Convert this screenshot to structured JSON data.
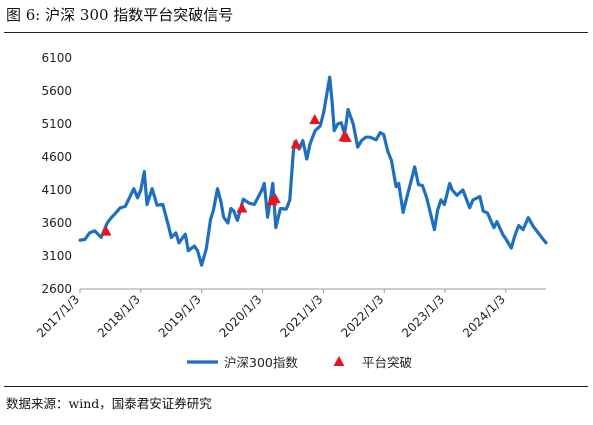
{
  "figure": {
    "title": "图 6:  沪深 300 指数平台突破信号",
    "source": "数据来源：wind，国泰君安证券研究"
  },
  "chart_data": {
    "type": "line",
    "xlabel": "",
    "ylabel": "",
    "ylim": [
      2600,
      6100
    ],
    "yticks": [
      2600,
      3100,
      3600,
      4100,
      4600,
      5100,
      5600,
      6100
    ],
    "xticks": [
      "2017/1/3",
      "2018/1/3",
      "2019/1/3",
      "2020/1/3",
      "2021/1/3",
      "2022/1/3",
      "2023/1/3",
      "2024/1/3"
    ],
    "xlim": [
      "2017/1/3",
      "2024/8/31"
    ],
    "grid": false,
    "legend_position": "bottom",
    "series": [
      {
        "name": "沪深300指数",
        "kind": "line",
        "color": "#1f6fc1",
        "points": [
          [
            "2017/1/3",
            3340
          ],
          [
            "2017/2/1",
            3350
          ],
          [
            "2017/3/1",
            3450
          ],
          [
            "2017/4/1",
            3480
          ],
          [
            "2017/5/10",
            3380
          ],
          [
            "2017/6/15",
            3600
          ],
          [
            "2017/7/10",
            3680
          ],
          [
            "2017/8/1",
            3740
          ],
          [
            "2017/9/1",
            3830
          ],
          [
            "2017/10/1",
            3850
          ],
          [
            "2017/11/1",
            4010
          ],
          [
            "2017/11/22",
            4120
          ],
          [
            "2017/12/15",
            3980
          ],
          [
            "2018/1/3",
            4100
          ],
          [
            "2018/1/24",
            4380
          ],
          [
            "2018/2/9",
            3880
          ],
          [
            "2018/3/12",
            4120
          ],
          [
            "2018/4/10",
            3870
          ],
          [
            "2018/5/15",
            3880
          ],
          [
            "2018/6/19",
            3550
          ],
          [
            "2018/7/5",
            3380
          ],
          [
            "2018/8/1",
            3450
          ],
          [
            "2018/8/20",
            3300
          ],
          [
            "2018/9/27",
            3430
          ],
          [
            "2018/10/15",
            3180
          ],
          [
            "2018/11/20",
            3250
          ],
          [
            "2018/12/10",
            3180
          ],
          [
            "2019/1/3",
            2960
          ],
          [
            "2019/1/31",
            3210
          ],
          [
            "2019/2/25",
            3650
          ],
          [
            "2019/3/15",
            3800
          ],
          [
            "2019/4/8",
            4120
          ],
          [
            "2019/4/30",
            3910
          ],
          [
            "2019/5/15",
            3690
          ],
          [
            "2019/6/10",
            3600
          ],
          [
            "2019/6/28",
            3820
          ],
          [
            "2019/7/15",
            3780
          ],
          [
            "2019/8/6",
            3640
          ],
          [
            "2019/9/10",
            3960
          ],
          [
            "2019/10/15",
            3900
          ],
          [
            "2019/11/15",
            3880
          ],
          [
            "2019/12/31",
            4100
          ],
          [
            "2020/1/14",
            4200
          ],
          [
            "2020/2/3",
            3690
          ],
          [
            "2020/3/5",
            4200
          ],
          [
            "2020/3/23",
            3530
          ],
          [
            "2020/4/20",
            3820
          ],
          [
            "2020/5/25",
            3810
          ],
          [
            "2020/6/15",
            3950
          ],
          [
            "2020/7/6",
            4670
          ],
          [
            "2020/7/15",
            4830
          ],
          [
            "2020/8/10",
            4720
          ],
          [
            "2020/9/1",
            4850
          ],
          [
            "2020/9/25",
            4570
          ],
          [
            "2020/10/15",
            4800
          ],
          [
            "2020/11/15",
            5000
          ],
          [
            "2020/12/15",
            5070
          ],
          [
            "2021/1/4",
            5270
          ],
          [
            "2021/1/20",
            5500
          ],
          [
            "2021/2/10",
            5810
          ],
          [
            "2021/2/25",
            5420
          ],
          [
            "2021/3/9",
            5000
          ],
          [
            "2021/3/30",
            5100
          ],
          [
            "2021/4/20",
            5120
          ],
          [
            "2021/5/10",
            4950
          ],
          [
            "2021/5/31",
            5320
          ],
          [
            "2021/6/10",
            5250
          ],
          [
            "2021/7/1",
            5100
          ],
          [
            "2021/7/28",
            4750
          ],
          [
            "2021/8/20",
            4850
          ],
          [
            "2021/9/15",
            4900
          ],
          [
            "2021/10/10",
            4900
          ],
          [
            "2021/11/15",
            4860
          ],
          [
            "2021/12/10",
            4970
          ],
          [
            "2021/12/31",
            4940
          ],
          [
            "2022/1/25",
            4680
          ],
          [
            "2022/2/15",
            4550
          ],
          [
            "2022/3/15",
            4150
          ],
          [
            "2022/3/31",
            4200
          ],
          [
            "2022/4/26",
            3760
          ],
          [
            "2022/5/20",
            4000
          ],
          [
            "2022/6/10",
            4200
          ],
          [
            "2022/7/5",
            4450
          ],
          [
            "2022/7/28",
            4180
          ],
          [
            "2022/8/20",
            4170
          ],
          [
            "2022/9/15",
            3980
          ],
          [
            "2022/10/31",
            3500
          ],
          [
            "2022/11/20",
            3800
          ],
          [
            "2022/12/10",
            3950
          ],
          [
            "2022/12/30",
            3880
          ],
          [
            "2023/1/31",
            4200
          ],
          [
            "2023/2/15",
            4100
          ],
          [
            "2023/3/15",
            4020
          ],
          [
            "2023/4/20",
            4100
          ],
          [
            "2023/5/31",
            3830
          ],
          [
            "2023/6/20",
            3950
          ],
          [
            "2023/7/31",
            4000
          ],
          [
            "2023/8/20",
            3780
          ],
          [
            "2023/9/15",
            3750
          ],
          [
            "2023/10/23",
            3530
          ],
          [
            "2023/11/10",
            3620
          ],
          [
            "2023/12/15",
            3430
          ],
          [
            "2024/1/5",
            3350
          ],
          [
            "2024/2/5",
            3220
          ],
          [
            "2024/2/25",
            3400
          ],
          [
            "2024/3/20",
            3560
          ],
          [
            "2024/4/15",
            3500
          ],
          [
            "2024/5/17",
            3680
          ],
          [
            "2024/6/15",
            3550
          ],
          [
            "2024/7/15",
            3450
          ],
          [
            "2024/8/15",
            3350
          ],
          [
            "2024/8/31",
            3300
          ]
        ]
      },
      {
        "name": "平台突破",
        "kind": "marker",
        "color": "#e8141c",
        "points": [
          [
            "2017/6/8",
            3470
          ],
          [
            "2019/9/2",
            3820
          ],
          [
            "2020/3/1",
            3930
          ],
          [
            "2020/3/20",
            3960
          ],
          [
            "2020/7/23",
            4790
          ],
          [
            "2020/11/12",
            5160
          ],
          [
            "2021/5/6",
            4900
          ],
          [
            "2021/5/20",
            4890
          ]
        ]
      }
    ]
  }
}
